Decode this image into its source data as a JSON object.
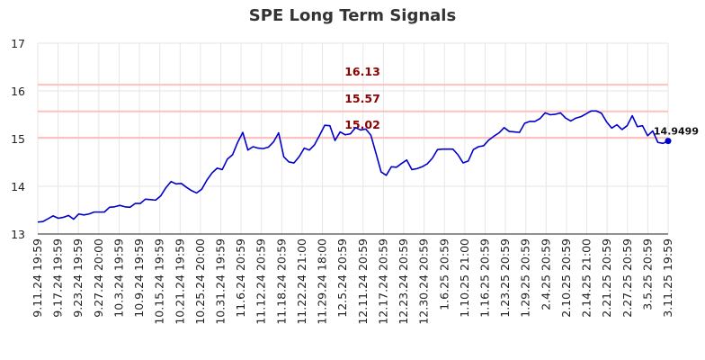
{
  "chart_data": {
    "type": "line",
    "title": "SPE Long Term Signals",
    "xlabel": "",
    "ylabel": "",
    "ylim": [
      13,
      17
    ],
    "y_ticks": [
      13,
      14,
      15,
      16,
      17
    ],
    "grid": true,
    "x_tick_labels": [
      "9.11.24 19:59",
      "9.17.24 19:59",
      "9.23.24 19:59",
      "9.27.24 20:00",
      "10.3.24 19:59",
      "10.9.24 19:59",
      "10.15.24 19:59",
      "10.21.24 19:59",
      "10.25.24 20:00",
      "10.31.24 19:59",
      "11.6.24 20:59",
      "11.12.24 20:59",
      "11.18.24 20:59",
      "11.22.24 21:00",
      "11.29.24 18:00",
      "12.5.24 20:59",
      "12.11.24 20:59",
      "12.17.24 20:59",
      "12.23.24 20:59",
      "12.30.24 20:59",
      "1.6.25 20:59",
      "1.10.25 21:00",
      "1.16.25 20:59",
      "1.23.25 20:59",
      "1.29.25 20:59",
      "2.4.25 20:59",
      "2.10.25 20:59",
      "2.14.25 21:00",
      "2.21.25 20:59",
      "2.27.25 20:59",
      "3.5.25 20:59",
      "3.11.25 19:59"
    ],
    "levels": [
      {
        "value": 16.13,
        "label": "16.13"
      },
      {
        "value": 15.57,
        "label": "15.57"
      },
      {
        "value": 15.02,
        "label": "15.02"
      }
    ],
    "last_value_label": "14.9499",
    "line_color": "#0000cc",
    "level_color": "#ffc0c0",
    "level_label_color": "#8b0000",
    "series": [
      {
        "values": [
          13.25,
          13.26,
          13.32,
          13.38,
          13.33,
          13.35,
          13.39,
          13.31,
          13.42,
          13.4,
          13.42,
          13.46,
          13.46,
          13.46,
          13.56,
          13.57,
          13.6,
          13.57,
          13.56,
          13.64,
          13.64,
          13.73,
          13.72,
          13.71,
          13.8,
          13.97,
          14.1,
          14.05,
          14.06,
          13.98,
          13.91,
          13.86,
          13.94,
          14.13,
          14.28,
          14.38,
          14.35,
          14.57,
          14.66,
          14.92,
          15.13,
          14.76,
          14.83,
          14.8,
          14.79,
          14.82,
          14.93,
          15.12,
          14.62,
          14.51,
          14.49,
          14.62,
          14.8,
          14.76,
          14.87,
          15.07,
          15.28,
          15.27,
          14.96,
          15.14,
          15.08,
          15.1,
          15.23,
          15.18,
          15.2,
          15.07,
          14.69,
          14.3,
          14.23,
          14.41,
          14.4,
          14.48,
          14.55,
          14.35,
          14.37,
          14.41,
          14.47,
          14.59,
          14.77,
          14.78,
          14.78,
          14.78,
          14.66,
          14.49,
          14.53,
          14.77,
          14.83,
          14.85,
          14.97,
          15.05,
          15.12,
          15.23,
          15.15,
          15.14,
          15.13,
          15.32,
          15.36,
          15.36,
          15.42,
          15.54,
          15.5,
          15.51,
          15.54,
          15.43,
          15.37,
          15.43,
          15.46,
          15.52,
          15.58,
          15.58,
          15.53,
          15.35,
          15.22,
          15.29,
          15.19,
          15.27,
          15.48,
          15.25,
          15.27,
          15.06,
          15.16,
          14.92,
          14.9,
          14.95
        ]
      }
    ]
  }
}
